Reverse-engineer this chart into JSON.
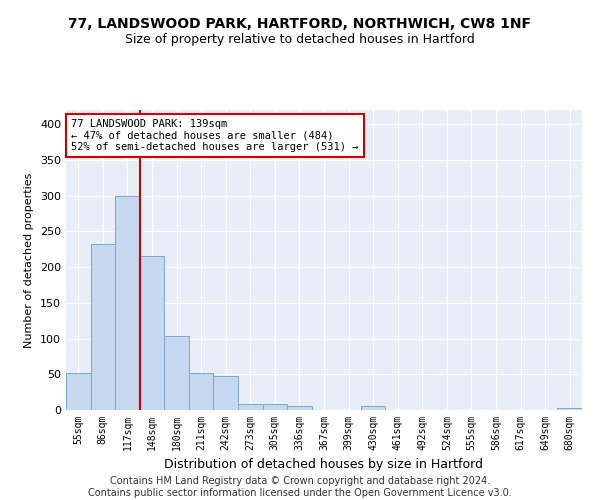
{
  "title1": "77, LANDSWOOD PARK, HARTFORD, NORTHWICH, CW8 1NF",
  "title2": "Size of property relative to detached houses in Hartford",
  "xlabel": "Distribution of detached houses by size in Hartford",
  "ylabel": "Number of detached properties",
  "categories": [
    "55sqm",
    "86sqm",
    "117sqm",
    "148sqm",
    "180sqm",
    "211sqm",
    "242sqm",
    "273sqm",
    "305sqm",
    "336sqm",
    "367sqm",
    "399sqm",
    "430sqm",
    "461sqm",
    "492sqm",
    "524sqm",
    "555sqm",
    "586sqm",
    "617sqm",
    "649sqm",
    "680sqm"
  ],
  "values": [
    52,
    232,
    300,
    215,
    103,
    52,
    48,
    9,
    9,
    6,
    0,
    0,
    5,
    0,
    0,
    0,
    0,
    0,
    0,
    0,
    3
  ],
  "bar_color": "#c5d8ef",
  "bar_edge_color": "#7aa8d0",
  "vline_x": 2.5,
  "vline_color": "#cc0000",
  "annotation_text": "77 LANDSWOOD PARK: 139sqm\n← 47% of detached houses are smaller (484)\n52% of semi-detached houses are larger (531) →",
  "annotation_box_color": "#ffffff",
  "annotation_box_edge": "#cc0000",
  "ylim": [
    0,
    420
  ],
  "yticks": [
    0,
    50,
    100,
    150,
    200,
    250,
    300,
    350,
    400
  ],
  "bg_color": "#e8eef8",
  "grid_color": "#ffffff",
  "footer": "Contains HM Land Registry data © Crown copyright and database right 2024.\nContains public sector information licensed under the Open Government Licence v3.0.",
  "title1_fontsize": 10,
  "title2_fontsize": 9,
  "annotation_fontsize": 7.5,
  "footer_fontsize": 7,
  "ylabel_fontsize": 8,
  "xlabel_fontsize": 9,
  "ytick_fontsize": 8,
  "xtick_fontsize": 7
}
